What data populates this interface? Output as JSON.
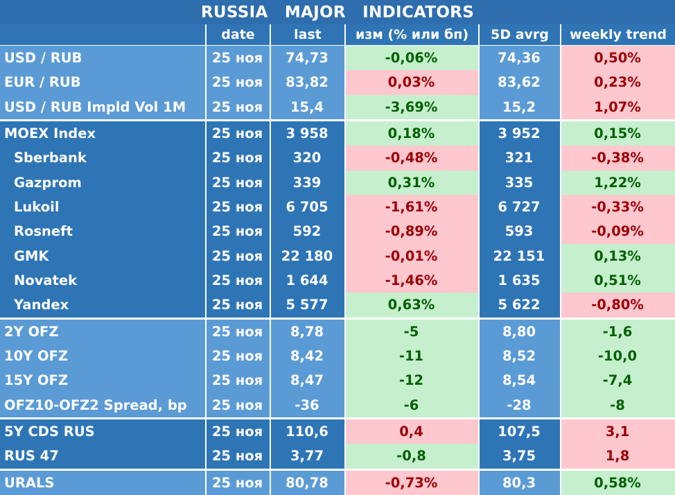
{
  "title": "RUSSIA  MAJOR  INDICATORS",
  "headers": [
    "",
    "date",
    "last",
    "изм (% или бп)",
    "5D avrg",
    "weekly trend"
  ],
  "groups": [
    {
      "shade": "light",
      "rows": [
        {
          "name": "USD / RUB",
          "indent": false,
          "date": "25 ноя",
          "last": "74,73",
          "change": "-0,06%",
          "change_color": "green",
          "avg": "74,36",
          "trend": "0,50%",
          "trend_color": "red"
        },
        {
          "name": "EUR / RUB",
          "indent": false,
          "date": "25 ноя",
          "last": "83,82",
          "change": "0,03%",
          "change_color": "red",
          "avg": "83,62",
          "trend": "0,23%",
          "trend_color": "red"
        },
        {
          "name": "USD / RUB Impld Vol 1M",
          "indent": false,
          "date": "25 ноя",
          "last": "15,4",
          "change": "-3,69%",
          "change_color": "green",
          "avg": "15,2",
          "trend": "1,07%",
          "trend_color": "red"
        }
      ]
    },
    {
      "shade": "dark",
      "rows": [
        {
          "name": "MOEX Index",
          "indent": false,
          "date": "25 ноя",
          "last": "3 958",
          "change": "0,18%",
          "change_color": "green",
          "avg": "3 952",
          "trend": "0,15%",
          "trend_color": "green"
        },
        {
          "name": "Sberbank",
          "indent": true,
          "date": "25 ноя",
          "last": "320",
          "change": "-0,48%",
          "change_color": "red",
          "avg": "321",
          "trend": "-0,38%",
          "trend_color": "red"
        },
        {
          "name": "Gazprom",
          "indent": true,
          "date": "25 ноя",
          "last": "339",
          "change": "0,31%",
          "change_color": "green",
          "avg": "335",
          "trend": "1,22%",
          "trend_color": "green"
        },
        {
          "name": "Lukoil",
          "indent": true,
          "date": "25 ноя",
          "last": "6 705",
          "change": "-1,61%",
          "change_color": "red",
          "avg": "6 727",
          "trend": "-0,33%",
          "trend_color": "red"
        },
        {
          "name": "Rosneft",
          "indent": true,
          "date": "25 ноя",
          "last": "592",
          "change": "-0,89%",
          "change_color": "red",
          "avg": "593",
          "trend": "-0,09%",
          "trend_color": "red"
        },
        {
          "name": "GMK",
          "indent": true,
          "date": "25 ноя",
          "last": "22 180",
          "change": "-0,01%",
          "change_color": "red",
          "avg": "22 151",
          "trend": "0,13%",
          "trend_color": "green"
        },
        {
          "name": "Novatek",
          "indent": true,
          "date": "25 ноя",
          "last": "1 644",
          "change": "-1,46%",
          "change_color": "red",
          "avg": "1 635",
          "trend": "0,51%",
          "trend_color": "green"
        },
        {
          "name": "Yandex",
          "indent": true,
          "date": "25 ноя",
          "last": "5 577",
          "change": "0,63%",
          "change_color": "green",
          "avg": "5 622",
          "trend": "-0,80%",
          "trend_color": "red"
        }
      ]
    },
    {
      "shade": "light",
      "rows": [
        {
          "name": "2Y OFZ",
          "indent": false,
          "date": "25 ноя",
          "last": "8,78",
          "change": "-5",
          "change_color": "green",
          "avg": "8,80",
          "trend": "-1,6",
          "trend_color": "green"
        },
        {
          "name": "10Y OFZ",
          "indent": false,
          "date": "25 ноя",
          "last": "8,42",
          "change": "-11",
          "change_color": "green",
          "avg": "8,52",
          "trend": "-10,0",
          "trend_color": "green"
        },
        {
          "name": "15Y OFZ",
          "indent": false,
          "date": "25 ноя",
          "last": "8,47",
          "change": "-12",
          "change_color": "green",
          "avg": "8,54",
          "trend": "-7,4",
          "trend_color": "green"
        },
        {
          "name": "OFZ10-OFZ2 Spread, bp",
          "indent": false,
          "date": "25 ноя",
          "last": "-36",
          "change": "-6",
          "change_color": "green",
          "avg": "-28",
          "trend": "-8",
          "trend_color": "green"
        }
      ]
    },
    {
      "shade": "dark",
      "rows": [
        {
          "name": "5Y CDS RUS",
          "indent": false,
          "date": "25 ноя",
          "last": "110,6",
          "change": "0,4",
          "change_color": "red",
          "avg": "107,5",
          "trend": "3,1",
          "trend_color": "red"
        },
        {
          "name": "RUS 47",
          "indent": false,
          "date": "25 ноя",
          "last": "3,77",
          "change": "-0,8",
          "change_color": "green",
          "avg": "3,75",
          "trend": "1,8",
          "trend_color": "red"
        }
      ]
    },
    {
      "shade": "light",
      "rows": [
        {
          "name": "URALS",
          "indent": false,
          "date": "25 ноя",
          "last": "80,78",
          "change": "-0,73%",
          "change_color": "red",
          "avg": "80,3",
          "trend": "0,58%",
          "trend_color": "green"
        }
      ]
    }
  ]
}
